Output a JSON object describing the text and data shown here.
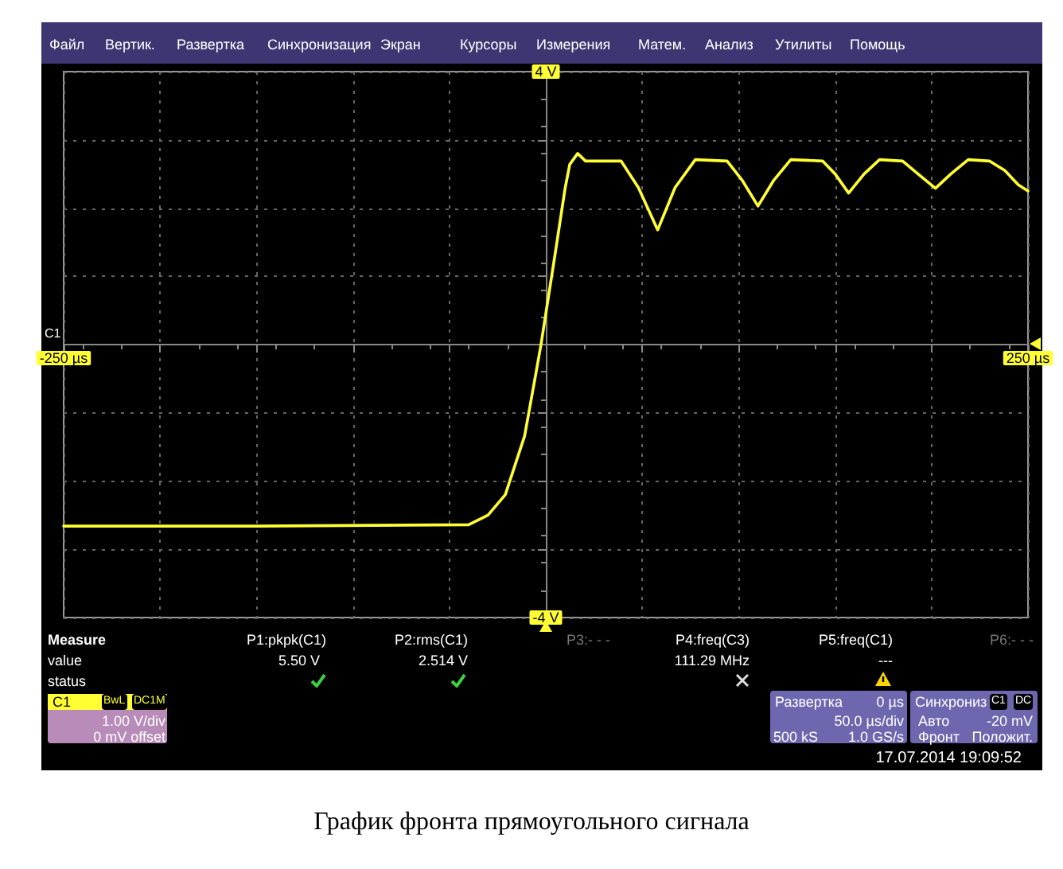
{
  "chart_data": {
    "type": "line",
    "title": "График фронта прямоугольного сигнала",
    "x": [
      -250,
      -150,
      -40,
      -30,
      -21,
      -11,
      -5,
      -2.5,
      5,
      10,
      12.4,
      16.5,
      20.6,
      39,
      48,
      58,
      67,
      77.5,
      94,
      102,
      110,
      118,
      127,
      143.5,
      150,
      157,
      165,
      173,
      185,
      193,
      202,
      210,
      219,
      230,
      238,
      245,
      250
    ],
    "series": [
      {
        "color": "#ffff33",
        "values": [
          -2.66,
          -2.66,
          -2.64,
          -2.5,
          -2.2,
          -1.34,
          -0.4,
          0,
          1.36,
          2.29,
          2.64,
          2.8,
          2.69,
          2.69,
          2.3,
          1.68,
          2.3,
          2.71,
          2.69,
          2.4,
          2.03,
          2.4,
          2.71,
          2.69,
          2.5,
          2.22,
          2.5,
          2.71,
          2.69,
          2.5,
          2.29,
          2.5,
          2.71,
          2.69,
          2.55,
          2.34,
          2.25
        ]
      }
    ],
    "xlim": [
      -250,
      250
    ],
    "xticks": [
      {
        "value": -250,
        "label": "-250 µs"
      },
      {
        "value": -200,
        "label": null
      },
      {
        "value": -150,
        "label": null
      },
      {
        "value": -100,
        "label": null
      },
      {
        "value": -50,
        "label": null
      },
      {
        "value": 0,
        "label": null
      },
      {
        "value": 50,
        "label": null
      },
      {
        "value": 100,
        "label": null
      },
      {
        "value": 150,
        "label": null
      },
      {
        "value": 200,
        "label": null
      },
      {
        "value": 250,
        "label": "250 µs"
      }
    ],
    "ylim": [
      -4,
      4
    ],
    "yticks": [
      {
        "value": -4,
        "label": "-4 V"
      },
      {
        "value": -3,
        "label": null
      },
      {
        "value": -2,
        "label": null
      },
      {
        "value": -1,
        "label": null
      },
      {
        "value": 0,
        "label": null
      },
      {
        "value": 1,
        "label": null
      },
      {
        "value": 2,
        "label": null
      },
      {
        "value": 3,
        "label": null
      },
      {
        "value": 4,
        "label": "4 V"
      }
    ],
    "grid": true,
    "annotations": [
      "Файл",
      "Вертик.",
      "Развертка",
      "Синхронизация",
      "Экран",
      "Курсоры",
      "Измерения",
      "Матем.",
      "Анализ",
      "Утилиты",
      "Помощь",
      "Measure",
      "value",
      "status",
      "P1:pkpk(C1)",
      "5.50 V",
      "P2:rms(C1)",
      "2.514 V",
      "P3:- - -",
      "P4:freq(C3)",
      "111.29 MHz",
      "P5:freq(C1)",
      "---",
      "P6:- - -",
      "C1",
      "BwL",
      "DC1M",
      "1.00 V/div",
      "0 mV offset",
      "Развертка",
      "0 µs",
      "50.0 µs/div",
      "500 kS",
      "1.0 GS/s",
      "Синхрониз",
      "C1",
      "DC",
      "Авто",
      "-20 mV",
      "Фронт",
      "Положит.",
      "17.07.2014 19:09:52",
      "C1"
    ]
  }
}
